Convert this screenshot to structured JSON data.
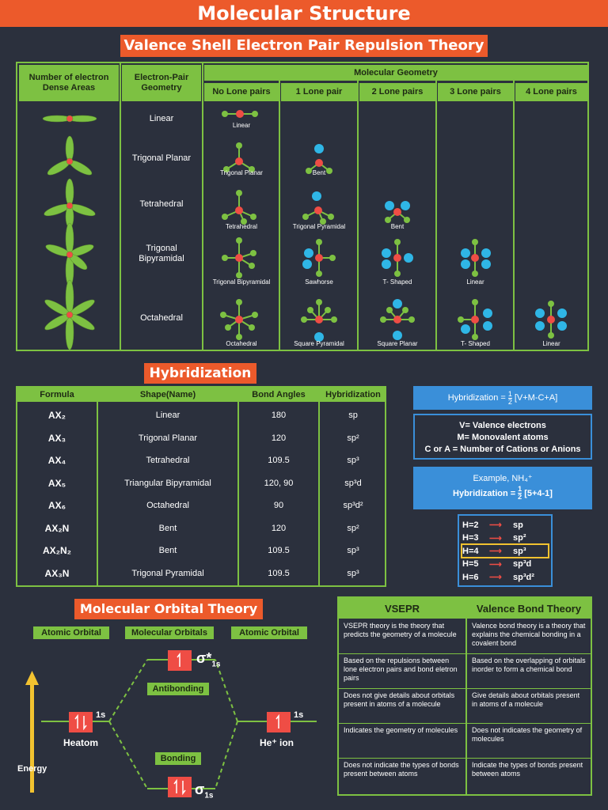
{
  "title": "Molecular Structure",
  "vsepr": {
    "title": "Valence Shell Electron Pair Repulsion Theory",
    "col_dense": "Number of electron Dense Areas",
    "col_geometry": "Electron-Pair Geometry",
    "col_molecular": "Molecular Geometry",
    "lone_pair_headers": [
      "No Lone pairs",
      "1 Lone pair",
      "2 Lone pairs",
      "3 Lone pairs",
      "4 Lone pairs"
    ],
    "rows": [
      {
        "geometry": "Linear",
        "shapes": [
          "Linear"
        ]
      },
      {
        "geometry": "Trigonal Planar",
        "shapes": [
          "Trigonal Planar",
          "Bent"
        ]
      },
      {
        "geometry": "Tetrahedral",
        "shapes": [
          "Tetrahedral",
          "Trigonal Pyramidal",
          "Bent"
        ]
      },
      {
        "geometry": "Trigonal Bipyramidal",
        "shapes": [
          "Trigonal Bipyramidal",
          "Sawhorse",
          "T- Shaped",
          "Linear"
        ]
      },
      {
        "geometry": "Octahedral",
        "shapes": [
          "Octahedral",
          "Square Pyramidal",
          "Square Planar",
          "T- Shaped",
          "Linear"
        ]
      }
    ]
  },
  "hybridization": {
    "title": "Hybridization",
    "headers": [
      "Formula",
      "Shape(Name)",
      "Bond Angles",
      "Hybridization"
    ],
    "rows": [
      {
        "formula": "AX₂",
        "shape": "Linear",
        "angle": "180",
        "hyb": "sp"
      },
      {
        "formula": "AX₃",
        "shape": "Trigonal Planar",
        "angle": "120",
        "hyb": "sp²"
      },
      {
        "formula": "AX₄",
        "shape": "Tetrahedral",
        "angle": "109.5",
        "hyb": "sp³"
      },
      {
        "formula": "AX₅",
        "shape": "Triangular Bipyramidal",
        "angle": "120, 90",
        "hyb": "sp³d"
      },
      {
        "formula": "AX₆",
        "shape": "Octahedral",
        "angle": "90",
        "hyb": "sp³d²"
      },
      {
        "formula": "AX₂N",
        "shape": "Bent",
        "angle": "120",
        "hyb": "sp²"
      },
      {
        "formula": "AX₂N₂",
        "shape": "Bent",
        "angle": "109.5",
        "hyb": "sp³"
      },
      {
        "formula": "AX₃N",
        "shape": "Trigonal Pyramidal",
        "angle": "109.5",
        "hyb": "sp³"
      }
    ],
    "formula_box": {
      "lhs": "Hybridization =",
      "num": "1",
      "den": "2",
      "rhs": "[V+M-C+A]"
    },
    "legend": [
      "V= Valence electrons",
      "M= Monovalent atoms",
      "C or A = Number of Cations or Anions"
    ],
    "example": {
      "title": "Example, NH₄⁺",
      "lhs": "Hybridization =",
      "num": "1",
      "den": "2",
      "rhs": "[5+4-1]"
    },
    "mapping": [
      {
        "h": "H=2",
        "t": "sp"
      },
      {
        "h": "H=3",
        "t": "sp²"
      },
      {
        "h": "H=4",
        "t": "sp³"
      },
      {
        "h": "H=5",
        "t": "sp³d"
      },
      {
        "h": "H=6",
        "t": "sp³d²"
      }
    ]
  },
  "mo": {
    "title": "Molecular Orbital Theory",
    "atomic_left": "Atomic Orbital",
    "molecular": "Molecular Orbitals",
    "atomic_right": "Atomic Orbital",
    "antibonding": "Antibonding",
    "bonding": "Bonding",
    "sigma_star": "σ*",
    "sigma_star_sub": "1s",
    "sigma": "σ",
    "sigma_sub": "1s",
    "left_orbital": "1s",
    "right_orbital": "1s",
    "left_atom": "Heatom",
    "right_atom": "He⁺ ion",
    "energy": "Energy"
  },
  "compare": {
    "headers": [
      "VSEPR",
      "Valence Bond Theory"
    ],
    "rows": [
      [
        "VSEPR theory is the theory that predicts the geometry of a molecule",
        "Valence bond theory is a theory that explains the chemical bonding in a covalent bond"
      ],
      [
        "Based on the repulsions between lone electron pairs and bond eletron pairs",
        "Based on the overlapping of orbitals inorder to form a chemical bond"
      ],
      [
        "Does not give details about orbitals present in atoms of a molecule",
        "Give details about orbitals present in atoms of a molecule"
      ],
      [
        "Indicates the geometry of molecules",
        "Does not indicates the geometry of molecules"
      ],
      [
        "Does not indicate the types of bonds present between atoms",
        "Indicate the types of bonds present between atoms"
      ]
    ]
  },
  "colors": {
    "green": "#7dc142",
    "orange": "#ec5a2b",
    "blue": "#3a8fd9",
    "center_atom": "#ef4d45",
    "lone_pair": "#2fb6e6",
    "background": "#2b303d",
    "arrow": "#f2c230"
  }
}
